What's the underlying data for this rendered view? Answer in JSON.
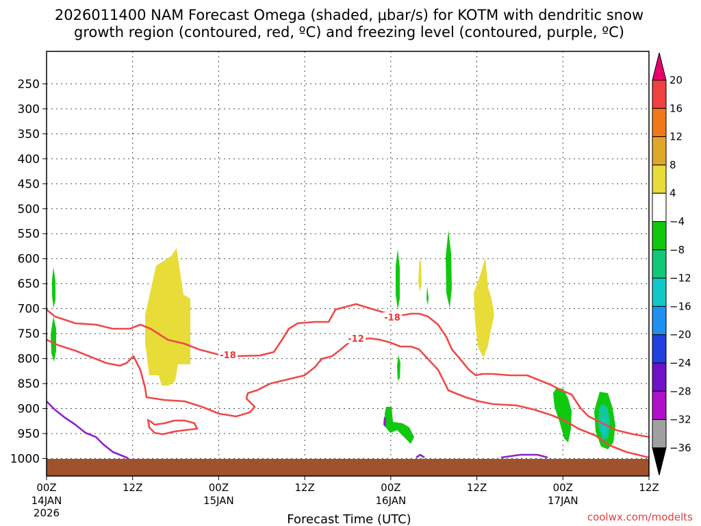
{
  "chart_data": {
    "type": "time-height cross section",
    "title_line1": "2026011400 NAM Forecast Omega (shaded, μbar/s) for KOTM with dendritic snow",
    "title_line2": "growth region (contoured, red, ºC) and freezing level (contoured, purple, ºC)",
    "xlabel": "Forecast Time (UTC)",
    "credit": "coolwx.com/modelts",
    "x_ticks": [
      {
        "hour": 0,
        "label": "00Z",
        "sub1": "14JAN",
        "sub2": "2026"
      },
      {
        "hour": 12,
        "label": "12Z",
        "sub1": "",
        "sub2": ""
      },
      {
        "hour": 24,
        "label": "00Z",
        "sub1": "15JAN",
        "sub2": ""
      },
      {
        "hour": 36,
        "label": "12Z",
        "sub1": "",
        "sub2": ""
      },
      {
        "hour": 48,
        "label": "00Z",
        "sub1": "16JAN",
        "sub2": ""
      },
      {
        "hour": 60,
        "label": "12Z",
        "sub1": "",
        "sub2": ""
      },
      {
        "hour": 72,
        "label": "00Z",
        "sub1": "17JAN",
        "sub2": ""
      },
      {
        "hour": 84,
        "label": "12Z",
        "sub1": "",
        "sub2": ""
      }
    ],
    "xlim": [
      0,
      84
    ],
    "y_levels_hpa": [
      250,
      300,
      350,
      400,
      450,
      500,
      550,
      600,
      650,
      700,
      750,
      800,
      850,
      900,
      950,
      1000
    ],
    "ylim_hpa": [
      185,
      1035
    ],
    "ground_level_hpa": 975,
    "colorbar": {
      "labels": [
        "20",
        "16",
        "12",
        "8",
        "4",
        "−4",
        "−8",
        "−12",
        "−16",
        "−20",
        "−24",
        "−28",
        "−32",
        "−36"
      ],
      "colors_top_to_bottom": [
        "#e8006e",
        "#f04040",
        "#f07818",
        "#e0a828",
        "#e8dc38",
        "#ffffff",
        "#10c810",
        "#10c878",
        "#10c8c8",
        "#1e90f0",
        "#2040e0",
        "#7010c8",
        "#b010c8",
        "#a0a0a0",
        "#000000"
      ]
    },
    "contour_labels": [
      "-18",
      "-12"
    ],
    "colors": {
      "dgz_contour": "#f04848",
      "freezing_contour": "#9020c8",
      "ground": "#a0522d",
      "yellow_shade": "#e8dc38",
      "green_shade": "#10c810",
      "cyan_shade": "#10c8a0"
    }
  }
}
